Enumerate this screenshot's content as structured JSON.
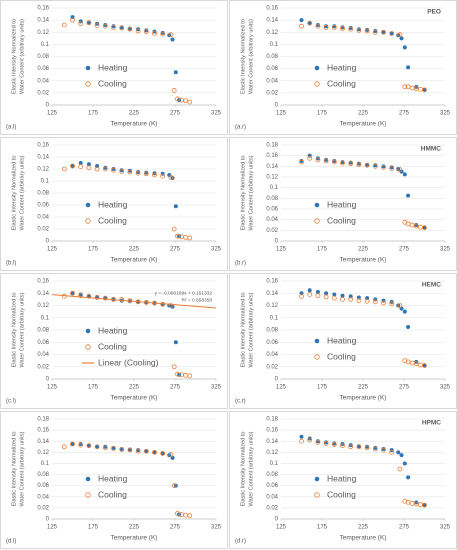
{
  "chart_data": [
    {
      "type": "scatter",
      "panel_label": "(a.l)",
      "xlabel": "Temperature  (K)",
      "ylabel": [
        "Elastic Intensity Normalized to",
        "Water Content (arbitrary units)"
      ],
      "xlim": [
        125,
        325
      ],
      "xticks": [
        125,
        175,
        225,
        275,
        325
      ],
      "ylim": [
        0,
        0.16
      ],
      "yticks": [
        0,
        0.02,
        0.04,
        0.06,
        0.08,
        0.1,
        0.12,
        0.14,
        0.16
      ],
      "grid": true,
      "series": [
        {
          "name": "Heating",
          "color": "#2e75b6",
          "marker": "filled",
          "x": [
            150,
            160,
            170,
            180,
            190,
            200,
            210,
            220,
            230,
            240,
            250,
            260,
            268,
            272,
            276,
            280
          ],
          "values": [
            0.145,
            0.138,
            0.135,
            0.134,
            0.132,
            0.13,
            0.128,
            0.126,
            0.125,
            0.123,
            0.121,
            0.119,
            0.115,
            0.108,
            0.054,
            0.008
          ]
        },
        {
          "name": "Cooling",
          "color": "#ed7d31",
          "marker": "open",
          "x": [
            140,
            150,
            160,
            170,
            180,
            190,
            200,
            210,
            220,
            230,
            240,
            250,
            260,
            270,
            274,
            278,
            283,
            288,
            293
          ],
          "values": [
            0.132,
            0.14,
            0.134,
            0.136,
            0.131,
            0.13,
            0.128,
            0.127,
            0.125,
            0.122,
            0.121,
            0.118,
            0.117,
            0.116,
            0.024,
            0.01,
            0.008,
            0.007,
            0.005
          ]
        }
      ]
    },
    {
      "type": "scatter",
      "title": "PEO",
      "panel_label": "(a.r)",
      "xlabel": "Temperature  (K)",
      "ylabel": [
        "Elastic Intensity Normalized to",
        "Water Content (arbitrary units)"
      ],
      "xlim": [
        125,
        325
      ],
      "xticks": [
        125,
        175,
        225,
        275,
        325
      ],
      "ylim": [
        0,
        0.16
      ],
      "yticks": [
        0,
        0.02,
        0.04,
        0.06,
        0.08,
        0.1,
        0.12,
        0.14,
        0.16
      ],
      "grid": true,
      "series": [
        {
          "name": "Heating",
          "color": "#2e75b6",
          "marker": "filled",
          "x": [
            150,
            160,
            170,
            180,
            190,
            200,
            210,
            220,
            230,
            240,
            250,
            260,
            268,
            272,
            276,
            280,
            290,
            300
          ],
          "values": [
            0.14,
            0.135,
            0.132,
            0.13,
            0.13,
            0.128,
            0.127,
            0.125,
            0.124,
            0.122,
            0.12,
            0.118,
            0.115,
            0.11,
            0.095,
            0.062,
            0.03,
            0.025
          ]
        },
        {
          "name": "Cooling",
          "color": "#ed7d31",
          "marker": "open",
          "x": [
            150,
            160,
            170,
            180,
            190,
            200,
            210,
            220,
            230,
            240,
            250,
            260,
            270,
            276,
            280,
            285,
            290,
            295,
            300
          ],
          "values": [
            0.13,
            0.135,
            0.13,
            0.128,
            0.128,
            0.126,
            0.125,
            0.123,
            0.122,
            0.12,
            0.12,
            0.118,
            0.116,
            0.03,
            0.03,
            0.028,
            0.027,
            0.026,
            0.025
          ]
        }
      ]
    },
    {
      "type": "scatter",
      "panel_label": "(b.l)",
      "xlabel": "Temperature  (K)",
      "ylabel": [
        "Elastic Intensity Normalized to",
        "Water Content (arbitrary units)"
      ],
      "xlim": [
        125,
        325
      ],
      "xticks": [
        125,
        175,
        225,
        275,
        325
      ],
      "ylim": [
        0,
        0.16
      ],
      "yticks": [
        0,
        0.02,
        0.04,
        0.06,
        0.08,
        0.1,
        0.12,
        0.14,
        0.16
      ],
      "grid": true,
      "series": [
        {
          "name": "Heating",
          "color": "#2e75b6",
          "marker": "filled",
          "x": [
            150,
            160,
            170,
            180,
            190,
            200,
            210,
            220,
            230,
            240,
            250,
            260,
            268,
            272,
            276,
            280
          ],
          "values": [
            0.125,
            0.13,
            0.128,
            0.125,
            0.122,
            0.12,
            0.118,
            0.117,
            0.115,
            0.114,
            0.113,
            0.112,
            0.11,
            0.105,
            0.058,
            0.008
          ]
        },
        {
          "name": "Cooling",
          "color": "#ed7d31",
          "marker": "open",
          "x": [
            140,
            150,
            160,
            170,
            180,
            190,
            200,
            210,
            220,
            230,
            240,
            250,
            260,
            270,
            274,
            278,
            283,
            288,
            293
          ],
          "values": [
            0.12,
            0.125,
            0.124,
            0.122,
            0.12,
            0.12,
            0.118,
            0.116,
            0.115,
            0.113,
            0.112,
            0.11,
            0.108,
            0.106,
            0.02,
            0.008,
            0.007,
            0.006,
            0.005
          ]
        }
      ]
    },
    {
      "type": "scatter",
      "title": "HMMC",
      "panel_label": "(b.r)",
      "xlabel": "Temperature  (K)",
      "ylabel": [
        "Elastic Intensity Normalized to",
        "Water Content (arbitrary units)"
      ],
      "xlim": [
        125,
        325
      ],
      "xticks": [
        125,
        175,
        225,
        275,
        325
      ],
      "ylim": [
        0,
        0.18
      ],
      "yticks": [
        0,
        0.02,
        0.04,
        0.06,
        0.08,
        0.1,
        0.12,
        0.14,
        0.16,
        0.18
      ],
      "grid": true,
      "series": [
        {
          "name": "Heating",
          "color": "#2e75b6",
          "marker": "filled",
          "x": [
            150,
            160,
            170,
            180,
            190,
            200,
            210,
            220,
            230,
            240,
            250,
            260,
            268,
            272,
            276,
            280,
            290,
            300
          ],
          "values": [
            0.15,
            0.16,
            0.155,
            0.152,
            0.15,
            0.148,
            0.147,
            0.145,
            0.143,
            0.142,
            0.14,
            0.138,
            0.135,
            0.13,
            0.125,
            0.085,
            0.03,
            0.025
          ]
        },
        {
          "name": "Cooling",
          "color": "#ed7d31",
          "marker": "open",
          "x": [
            150,
            160,
            170,
            180,
            190,
            200,
            210,
            220,
            230,
            240,
            250,
            260,
            270,
            276,
            280,
            285,
            290,
            295,
            300
          ],
          "values": [
            0.148,
            0.155,
            0.152,
            0.15,
            0.148,
            0.146,
            0.145,
            0.143,
            0.142,
            0.14,
            0.138,
            0.136,
            0.134,
            0.035,
            0.032,
            0.03,
            0.028,
            0.026,
            0.025
          ]
        }
      ]
    },
    {
      "type": "scatter",
      "panel_label": "(c.l)",
      "xlabel": "Temperature  (K)",
      "ylabel": [
        "Elastic Intensity Normalized to",
        "Water Content (arbitrary units)"
      ],
      "xlim": [
        125,
        325
      ],
      "xticks": [
        125,
        175,
        225,
        275,
        325
      ],
      "ylim": [
        0,
        0.16
      ],
      "yticks": [
        0,
        0.02,
        0.04,
        0.06,
        0.08,
        0.1,
        0.12,
        0.14,
        0.16
      ],
      "grid": true,
      "annotations": [
        "y = -0.000109x + 0.151332",
        "R² = 0.658358"
      ],
      "series": [
        {
          "name": "Heating",
          "color": "#2e75b6",
          "marker": "filled",
          "x": [
            150,
            160,
            170,
            180,
            190,
            200,
            210,
            220,
            230,
            240,
            250,
            260,
            268,
            272,
            276,
            280
          ],
          "values": [
            0.14,
            0.138,
            0.135,
            0.134,
            0.132,
            0.13,
            0.128,
            0.127,
            0.126,
            0.125,
            0.124,
            0.122,
            0.12,
            0.118,
            0.06,
            0.007
          ]
        },
        {
          "name": "Cooling",
          "color": "#ed7d31",
          "marker": "open",
          "x": [
            140,
            150,
            160,
            170,
            180,
            190,
            200,
            210,
            220,
            230,
            240,
            250,
            260,
            270,
            274,
            278,
            283,
            288,
            293
          ],
          "values": [
            0.135,
            0.14,
            0.136,
            0.135,
            0.133,
            0.132,
            0.13,
            0.13,
            0.128,
            0.126,
            0.125,
            0.124,
            0.122,
            0.12,
            0.02,
            0.008,
            0.007,
            0.006,
            0.005
          ]
        },
        {
          "name": "Linear (Cooling)",
          "color": "#ed7d31",
          "marker": "line",
          "x": [
            125,
            325
          ],
          "values": [
            0.137707,
            0.115907
          ]
        }
      ]
    },
    {
      "type": "scatter",
      "title": "HEMC",
      "panel_label": "(c.r)",
      "xlabel": "Temperature  (K)",
      "ylabel": [
        "Elastic Intensity Normalized to",
        "Water Content (arbitrary units)"
      ],
      "xlim": [
        125,
        325
      ],
      "xticks": [
        125,
        175,
        225,
        275,
        325
      ],
      "ylim": [
        0,
        0.16
      ],
      "yticks": [
        0,
        0.02,
        0.04,
        0.06,
        0.08,
        0.1,
        0.12,
        0.14,
        0.16
      ],
      "grid": true,
      "series": [
        {
          "name": "Heating",
          "color": "#2e75b6",
          "marker": "filled",
          "x": [
            150,
            160,
            170,
            180,
            190,
            200,
            210,
            220,
            230,
            240,
            250,
            260,
            268,
            272,
            276,
            280,
            290,
            300
          ],
          "values": [
            0.14,
            0.145,
            0.142,
            0.14,
            0.138,
            0.136,
            0.135,
            0.133,
            0.132,
            0.13,
            0.128,
            0.126,
            0.12,
            0.115,
            0.11,
            0.085,
            0.028,
            0.022
          ]
        },
        {
          "name": "Cooling",
          "color": "#ed7d31",
          "marker": "open",
          "x": [
            150,
            160,
            170,
            180,
            190,
            200,
            210,
            220,
            230,
            240,
            250,
            260,
            270,
            276,
            280,
            285,
            290,
            295,
            300
          ],
          "values": [
            0.135,
            0.138,
            0.136,
            0.134,
            0.132,
            0.13,
            0.13,
            0.128,
            0.127,
            0.126,
            0.124,
            0.123,
            0.12,
            0.03,
            0.028,
            0.026,
            0.025,
            0.023,
            0.022
          ]
        }
      ]
    },
    {
      "type": "scatter",
      "panel_label": "(d.l)",
      "xlabel": "Temperature  (K)",
      "ylabel": [
        "Elastic Intensity Normalized to",
        "Water Content (arbitrary units)"
      ],
      "xlim": [
        125,
        325
      ],
      "xticks": [
        125,
        175,
        225,
        275,
        325
      ],
      "ylim": [
        0,
        0.18
      ],
      "yticks": [
        0,
        0.02,
        0.04,
        0.06,
        0.08,
        0.1,
        0.12,
        0.14,
        0.16,
        0.18
      ],
      "grid": true,
      "series": [
        {
          "name": "Heating",
          "color": "#2e75b6",
          "marker": "filled",
          "x": [
            150,
            160,
            170,
            180,
            190,
            200,
            210,
            220,
            230,
            240,
            250,
            260,
            268,
            272,
            276,
            280
          ],
          "values": [
            0.135,
            0.135,
            0.132,
            0.13,
            0.13,
            0.128,
            0.126,
            0.125,
            0.124,
            0.122,
            0.12,
            0.118,
            0.115,
            0.11,
            0.06,
            0.008
          ]
        },
        {
          "name": "Cooling",
          "color": "#ed7d31",
          "marker": "open",
          "x": [
            140,
            150,
            160,
            170,
            180,
            190,
            200,
            210,
            220,
            230,
            240,
            250,
            260,
            270,
            274,
            278,
            283,
            288,
            293
          ],
          "values": [
            0.13,
            0.135,
            0.133,
            0.132,
            0.13,
            0.128,
            0.127,
            0.125,
            0.124,
            0.122,
            0.122,
            0.12,
            0.118,
            0.116,
            0.06,
            0.01,
            0.008,
            0.007,
            0.006
          ]
        }
      ]
    },
    {
      "type": "scatter",
      "title": "HPMC",
      "panel_label": "(d.r)",
      "xlabel": "Temperature  (K)",
      "ylabel": [
        "Elastic Intensity Normalized to",
        "Water Content (arbitrary units)"
      ],
      "xlim": [
        125,
        325
      ],
      "xticks": [
        125,
        175,
        225,
        275,
        325
      ],
      "ylim": [
        0,
        0.18
      ],
      "yticks": [
        0,
        0.02,
        0.04,
        0.06,
        0.08,
        0.1,
        0.12,
        0.14,
        0.16,
        0.18
      ],
      "grid": true,
      "series": [
        {
          "name": "Heating",
          "color": "#2e75b6",
          "marker": "filled",
          "x": [
            150,
            160,
            170,
            180,
            190,
            200,
            210,
            220,
            230,
            240,
            250,
            260,
            268,
            272,
            276,
            280,
            290,
            300
          ],
          "values": [
            0.148,
            0.145,
            0.14,
            0.138,
            0.136,
            0.135,
            0.133,
            0.131,
            0.13,
            0.128,
            0.126,
            0.124,
            0.12,
            0.115,
            0.1,
            0.075,
            0.03,
            0.025
          ]
        },
        {
          "name": "Cooling",
          "color": "#ed7d31",
          "marker": "open",
          "x": [
            150,
            160,
            170,
            180,
            190,
            200,
            210,
            220,
            230,
            240,
            250,
            260,
            270,
            276,
            280,
            285,
            290,
            295,
            300
          ],
          "values": [
            0.14,
            0.142,
            0.138,
            0.136,
            0.134,
            0.132,
            0.13,
            0.13,
            0.128,
            0.126,
            0.124,
            0.12,
            0.09,
            0.032,
            0.03,
            0.028,
            0.027,
            0.026,
            0.025
          ]
        }
      ]
    }
  ]
}
